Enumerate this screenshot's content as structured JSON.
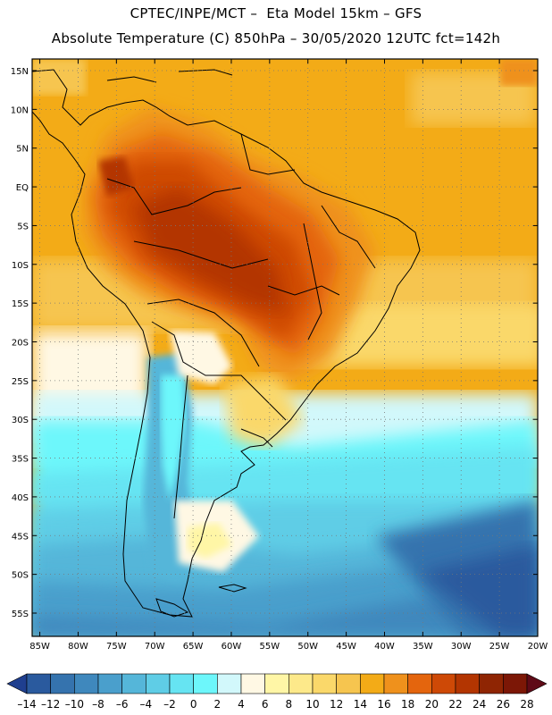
{
  "header": {
    "title_line1": "CPTEC/INPE/MCT –  Eta Model 15km – GFS",
    "title_line2": "Absolute Temperature (C) 850hPa – 30/05/2020 12UTC fct=142h"
  },
  "map": {
    "lat_labels": [
      "15N",
      "10N",
      "5N",
      "EQ",
      "5S",
      "10S",
      "15S",
      "20S",
      "25S",
      "30S",
      "35S",
      "40S",
      "45S",
      "50S",
      "55S"
    ],
    "lat_values": [
      15,
      10,
      5,
      0,
      -5,
      -10,
      -15,
      -20,
      -25,
      -30,
      -35,
      -40,
      -45,
      -50,
      -55
    ],
    "lon_labels": [
      "85W",
      "80W",
      "75W",
      "70W",
      "65W",
      "60W",
      "55W",
      "50W",
      "45W",
      "40W",
      "35W",
      "30W",
      "25W",
      "20W"
    ],
    "lon_values": [
      -85,
      -80,
      -75,
      -70,
      -65,
      -60,
      -55,
      -50,
      -45,
      -40,
      -35,
      -30,
      -25,
      -20
    ],
    "lat_range": [
      -58,
      16.5
    ],
    "lon_range": [
      -86,
      -20
    ],
    "gridlines": "dotted",
    "region": "South America"
  },
  "colorbar": {
    "labels": [
      "-14",
      "-12",
      "-10",
      "-8",
      "-6",
      "-4",
      "-2",
      "0",
      "2",
      "4",
      "6",
      "8",
      "10",
      "12",
      "14",
      "16",
      "18",
      "20",
      "22",
      "24",
      "26",
      "28"
    ],
    "colors": [
      "#1f3f8f",
      "#2a5a9e",
      "#3573ae",
      "#3f88bd",
      "#4a9fcc",
      "#55b6d9",
      "#5fcde6",
      "#66e4f2",
      "#6df7fb",
      "#d2f8fb",
      "#fff8e4",
      "#fff6a6",
      "#fde98a",
      "#fad86a",
      "#f6c54f",
      "#f3ab17",
      "#ef911c",
      "#e4650d",
      "#ce4906",
      "#b33501",
      "#8f2503",
      "#7c1706",
      "#5f0a17"
    ]
  }
}
